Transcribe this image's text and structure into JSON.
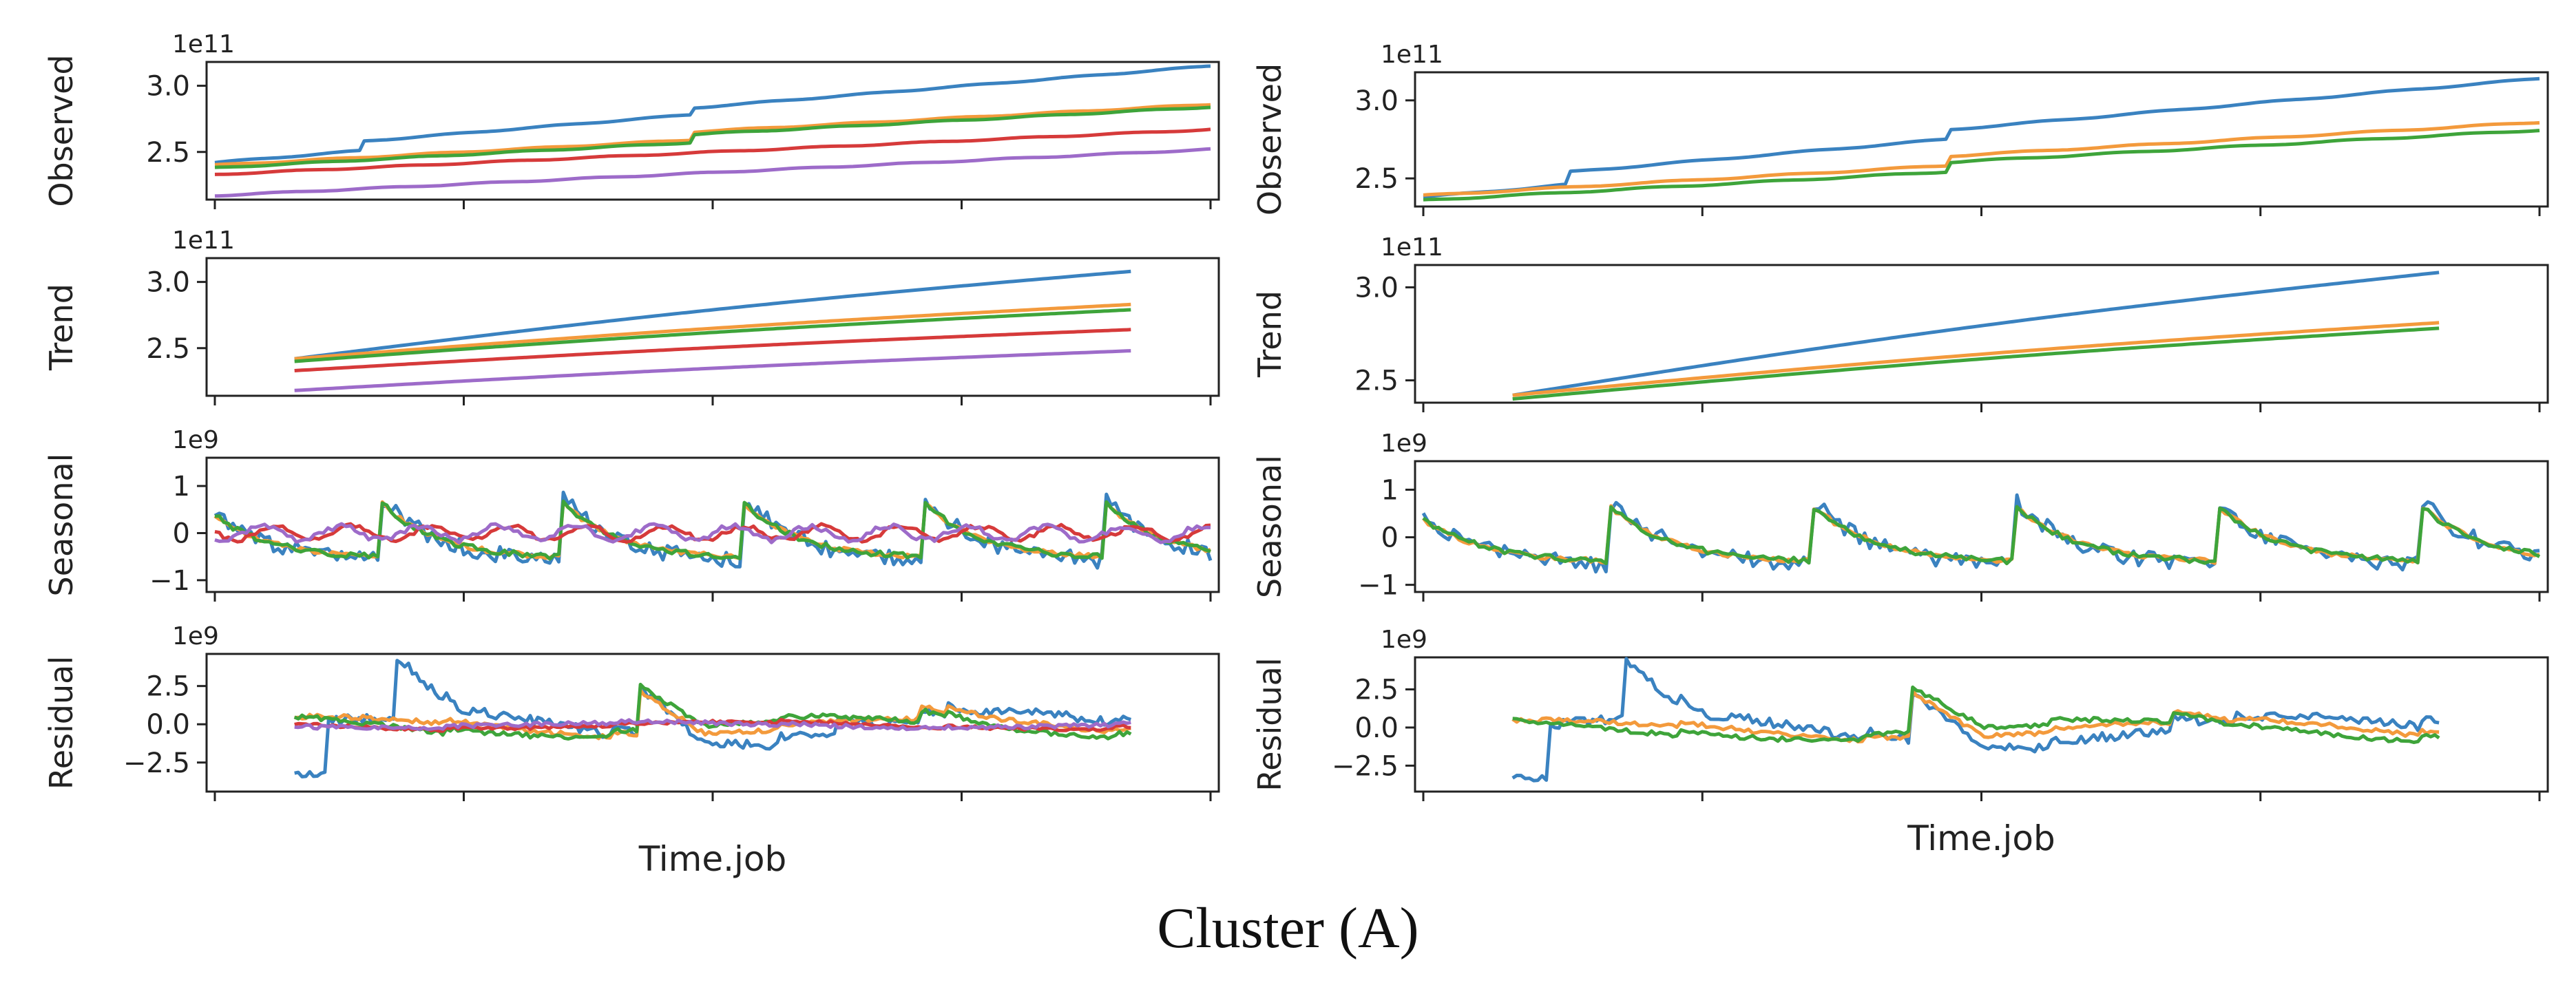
{
  "figure": {
    "caption": "Cluster (A)"
  },
  "colors": {
    "blue": "#3a82c0",
    "orange": "#f39a3c",
    "green": "#3ea43a",
    "red": "#d63a3a",
    "purple": "#9d6bc9"
  },
  "chart_data": [
    {
      "type": "line",
      "panel": "left",
      "xlabel": "Time.job",
      "x_range": [
        0,
        1
      ],
      "subplots": [
        {
          "kind": "observed",
          "ylabel": "Observed",
          "scale_label": "1e11",
          "multiplier": 100000000000.0,
          "yticks": [
            "2.5",
            "3.0"
          ],
          "ytick_values": [
            2.5,
            3.0
          ],
          "ylim": [
            2.14,
            3.18
          ],
          "series": [
            {
              "name": "series-1",
              "color": "#3a82c0",
              "start": 2.42,
              "end": 3.15,
              "steps": [
                [
                  0.15,
                  0.07
                ],
                [
                  0.48,
                  0.05
                ]
              ],
              "noise": 0.0
            },
            {
              "name": "series-2",
              "color": "#f39a3c",
              "start": 2.4,
              "end": 2.86,
              "steps": [
                [
                  0.48,
                  0.06
                ]
              ],
              "noise": 0.0
            },
            {
              "name": "series-3",
              "color": "#3ea43a",
              "start": 2.38,
              "end": 2.84,
              "steps": [
                [
                  0.48,
                  0.06
                ]
              ],
              "noise": 0.0
            },
            {
              "name": "series-4",
              "color": "#d63a3a",
              "start": 2.33,
              "end": 2.67,
              "steps": [],
              "noise": 0.0
            },
            {
              "name": "series-5",
              "color": "#9d6bc9",
              "start": 2.17,
              "end": 2.52,
              "steps": [],
              "noise": 0.0
            }
          ]
        },
        {
          "kind": "trend",
          "ylabel": "Trend",
          "scale_label": "1e11",
          "multiplier": 100000000000.0,
          "yticks": [
            "2.5",
            "3.0"
          ],
          "ytick_values": [
            2.5,
            3.0
          ],
          "ylim": [
            2.14,
            3.18
          ],
          "x_span": [
            0.08,
            0.92
          ],
          "series": [
            {
              "name": "series-1",
              "color": "#3a82c0",
              "start": 2.42,
              "end": 3.08
            },
            {
              "name": "series-2",
              "color": "#f39a3c",
              "start": 2.42,
              "end": 2.83
            },
            {
              "name": "series-3",
              "color": "#3ea43a",
              "start": 2.4,
              "end": 2.79
            },
            {
              "name": "series-4",
              "color": "#d63a3a",
              "start": 2.33,
              "end": 2.64
            },
            {
              "name": "series-5",
              "color": "#9d6bc9",
              "start": 2.18,
              "end": 2.48
            }
          ]
        },
        {
          "kind": "seasonal",
          "ylabel": "Seasonal",
          "scale_label": "1e9",
          "multiplier": 1000000000.0,
          "yticks": [
            "−1",
            "0",
            "1"
          ],
          "ytick_values": [
            -1,
            0,
            1
          ],
          "ylim": [
            -1.25,
            1.6
          ],
          "periods": 5.5,
          "phase": 0.08,
          "series": [
            {
              "name": "series-1",
              "color": "#3a82c0",
              "amp": 1.15,
              "noise": 0.35
            },
            {
              "name": "series-2",
              "color": "#f39a3c",
              "amp": 1.0,
              "noise": 0.1
            },
            {
              "name": "series-3",
              "color": "#3ea43a",
              "amp": 1.0,
              "noise": 0.12
            },
            {
              "name": "series-4",
              "color": "#d63a3a",
              "amp": 0.15,
              "noise": 0.1
            },
            {
              "name": "series-5",
              "color": "#9d6bc9",
              "amp": 0.15,
              "noise": 0.12
            }
          ]
        },
        {
          "kind": "residual",
          "ylabel": "Residual",
          "scale_label": "1e9",
          "multiplier": 1000000000.0,
          "yticks": [
            "−2.5",
            "0.0",
            "2.5"
          ],
          "ytick_values": [
            -2.5,
            0.0,
            2.5
          ],
          "ylim": [
            -4.4,
            4.6
          ],
          "x_span": [
            0.08,
            0.92
          ],
          "series": [
            {
              "name": "series-1",
              "color": "#3a82c0",
              "amp": 1.6,
              "noise": 0.6,
              "spikes": [
                [
                  0.12,
                  4.0
                ],
                [
                  0.41,
                  3.2
                ],
                [
                  0.65,
                  1.0
                ],
                [
                  0.75,
                  0.8
                ]
              ]
            },
            {
              "name": "series-2",
              "color": "#f39a3c",
              "amp": 1.0,
              "noise": 0.3,
              "spikes": [
                [
                  0.41,
                  3.0
                ],
                [
                  0.75,
                  0.8
                ]
              ]
            },
            {
              "name": "series-3",
              "color": "#3ea43a",
              "amp": 1.0,
              "noise": 0.3,
              "spikes": [
                [
                  0.41,
                  3.0
                ],
                [
                  0.75,
                  0.8
                ]
              ]
            },
            {
              "name": "series-4",
              "color": "#d63a3a",
              "amp": 0.4,
              "noise": 0.2,
              "spikes": []
            },
            {
              "name": "series-5",
              "color": "#9d6bc9",
              "amp": 0.3,
              "noise": 0.25,
              "spikes": []
            }
          ]
        }
      ]
    },
    {
      "type": "line",
      "panel": "right",
      "xlabel": "Time.job",
      "x_range": [
        0,
        1
      ],
      "subplots": [
        {
          "kind": "observed",
          "ylabel": "Observed",
          "scale_label": "1e11",
          "multiplier": 100000000000.0,
          "yticks": [
            "2.5",
            "3.0"
          ],
          "ytick_values": [
            2.5,
            3.0
          ],
          "ylim": [
            2.32,
            3.18
          ],
          "series": [
            {
              "name": "series-1",
              "color": "#3a82c0",
              "start": 2.38,
              "end": 3.14,
              "steps": [
                [
                  0.13,
                  0.08
                ],
                [
                  0.47,
                  0.06
                ]
              ],
              "noise": 0.0
            },
            {
              "name": "series-2",
              "color": "#f39a3c",
              "start": 2.39,
              "end": 2.86,
              "steps": [
                [
                  0.47,
                  0.06
                ]
              ],
              "noise": 0.0
            },
            {
              "name": "series-3",
              "color": "#3ea43a",
              "start": 2.36,
              "end": 2.81,
              "steps": [
                [
                  0.47,
                  0.06
                ]
              ],
              "noise": 0.0
            }
          ]
        },
        {
          "kind": "trend",
          "ylabel": "Trend",
          "scale_label": "1e11",
          "multiplier": 100000000000.0,
          "yticks": [
            "2.5",
            "3.0"
          ],
          "ytick_values": [
            2.5,
            3.0
          ],
          "ylim": [
            2.38,
            3.12
          ],
          "x_span": [
            0.08,
            0.91
          ],
          "series": [
            {
              "name": "series-1",
              "color": "#3a82c0",
              "start": 2.42,
              "end": 3.08
            },
            {
              "name": "series-2",
              "color": "#f39a3c",
              "start": 2.42,
              "end": 2.81
            },
            {
              "name": "series-3",
              "color": "#3ea43a",
              "start": 2.4,
              "end": 2.78
            }
          ]
        },
        {
          "kind": "seasonal",
          "ylabel": "Seasonal",
          "scale_label": "1e9",
          "multiplier": 1000000000.0,
          "yticks": [
            "−1",
            "0",
            "1"
          ],
          "ytick_values": [
            -1,
            0,
            1
          ],
          "ylim": [
            -1.15,
            1.6
          ],
          "periods": 5.5,
          "phase": 0.08,
          "series": [
            {
              "name": "series-1",
              "color": "#3a82c0",
              "amp": 1.15,
              "noise": 0.35
            },
            {
              "name": "series-2",
              "color": "#f39a3c",
              "amp": 1.0,
              "noise": 0.1
            },
            {
              "name": "series-3",
              "color": "#3ea43a",
              "amp": 1.0,
              "noise": 0.12
            }
          ]
        },
        {
          "kind": "residual",
          "ylabel": "Residual",
          "scale_label": "1e9",
          "multiplier": 1000000000.0,
          "yticks": [
            "−2.5",
            "0.0",
            "2.5"
          ],
          "ytick_values": [
            -2.5,
            0.0,
            2.5
          ],
          "ylim": [
            -4.2,
            4.6
          ],
          "x_span": [
            0.08,
            0.91
          ],
          "series": [
            {
              "name": "series-1",
              "color": "#3a82c0",
              "amp": 1.6,
              "noise": 0.6,
              "spikes": [
                [
                  0.12,
                  4.0
                ],
                [
                  0.43,
                  3.2
                ],
                [
                  0.71,
                  0.8
                ]
              ]
            },
            {
              "name": "series-2",
              "color": "#f39a3c",
              "amp": 1.0,
              "noise": 0.3,
              "spikes": [
                [
                  0.43,
                  3.0
                ],
                [
                  0.71,
                  0.8
                ]
              ]
            },
            {
              "name": "series-3",
              "color": "#3ea43a",
              "amp": 1.0,
              "noise": 0.3,
              "spikes": [
                [
                  0.43,
                  3.0
                ],
                [
                  0.71,
                  0.8
                ]
              ]
            }
          ]
        }
      ]
    }
  ]
}
